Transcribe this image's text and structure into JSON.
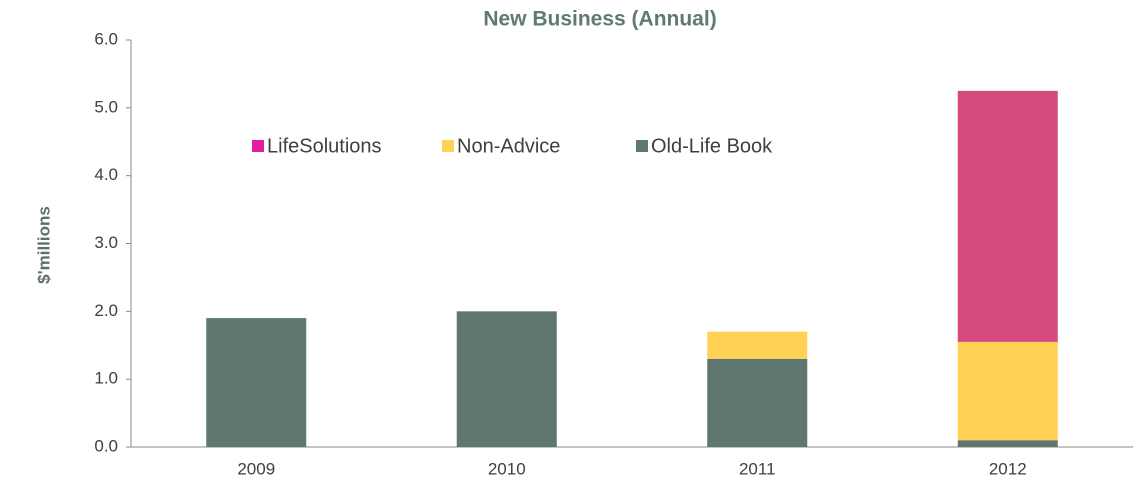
{
  "chart_data": {
    "type": "stacked_bar",
    "title": "New Business (Annual)",
    "y_label": "$'millions",
    "categories": [
      "2009",
      "2010",
      "2011",
      "2012"
    ],
    "series": [
      {
        "name": "Old-Life Book",
        "color": "#5f7770",
        "values": [
          1.9,
          2.0,
          1.3,
          0.1
        ]
      },
      {
        "name": "Non-Advice",
        "color": "#ffd154",
        "values": [
          0,
          0,
          0.4,
          1.45
        ]
      },
      {
        "name": "LifeSolutions",
        "color": "#d6497c",
        "legend_color": "#e01fa0",
        "values": [
          0,
          0,
          0,
          3.7
        ]
      }
    ],
    "ylim": [
      0,
      6
    ],
    "yticks": [
      {
        "value": 0,
        "label": "0.0"
      },
      {
        "value": 1,
        "label": "1.0"
      },
      {
        "value": 2,
        "label": "2.0"
      },
      {
        "value": 3,
        "label": "3.0"
      },
      {
        "value": 4,
        "label": "4.0"
      },
      {
        "value": 5,
        "label": "5.0"
      },
      {
        "value": 6,
        "label": "6.0"
      }
    ],
    "grid": false,
    "legend": "top-left"
  }
}
